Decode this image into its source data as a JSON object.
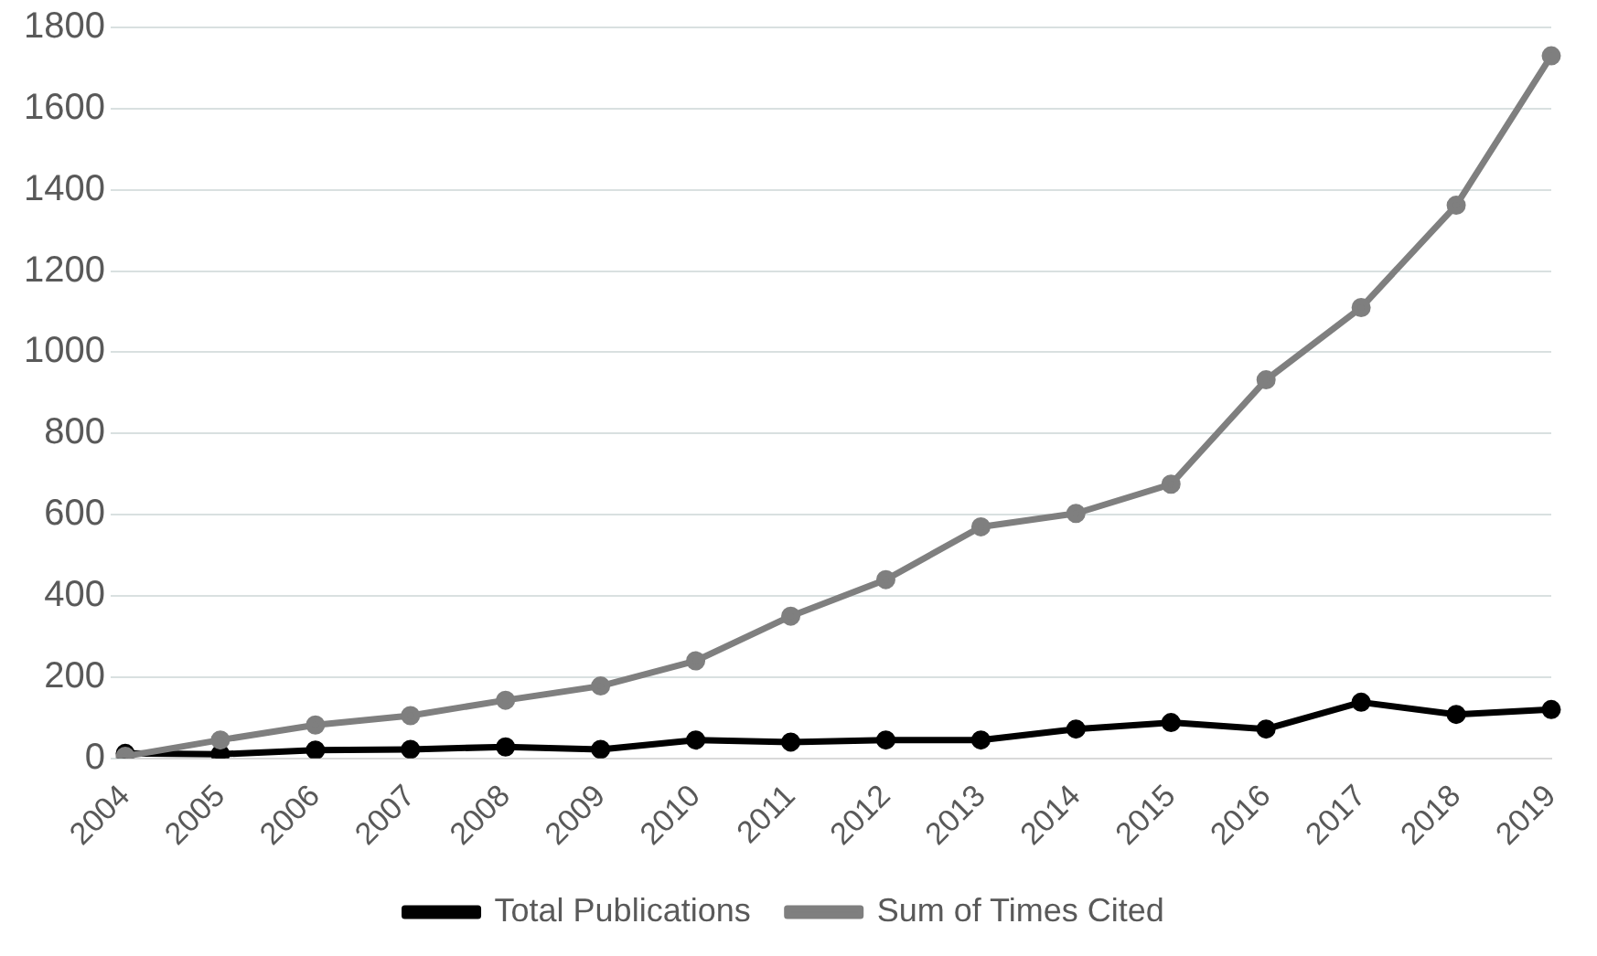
{
  "chart_data": {
    "type": "line",
    "categories": [
      "2004",
      "2005",
      "2006",
      "2007",
      "2008",
      "2009",
      "2010",
      "2011",
      "2012",
      "2013",
      "2014",
      "2015",
      "2016",
      "2017",
      "2018",
      "2019"
    ],
    "series": [
      {
        "name": "Total Publications",
        "color": "#000000",
        "values": [
          12,
          10,
          20,
          22,
          28,
          22,
          45,
          40,
          45,
          45,
          72,
          88,
          72,
          138,
          108,
          120
        ]
      },
      {
        "name": "Sum of Times Cited",
        "color": "#7f7f7f",
        "values": [
          5,
          45,
          82,
          105,
          143,
          178,
          240,
          350,
          440,
          570,
          603,
          675,
          932,
          1110,
          1362,
          1730
        ]
      }
    ],
    "ylim": [
      0,
      1800
    ],
    "yticks": [
      0,
      200,
      400,
      600,
      800,
      1000,
      1200,
      1400,
      1600,
      1800
    ],
    "grid": "y",
    "legend": "bottom",
    "marker": "circle",
    "line_style": "solid"
  }
}
